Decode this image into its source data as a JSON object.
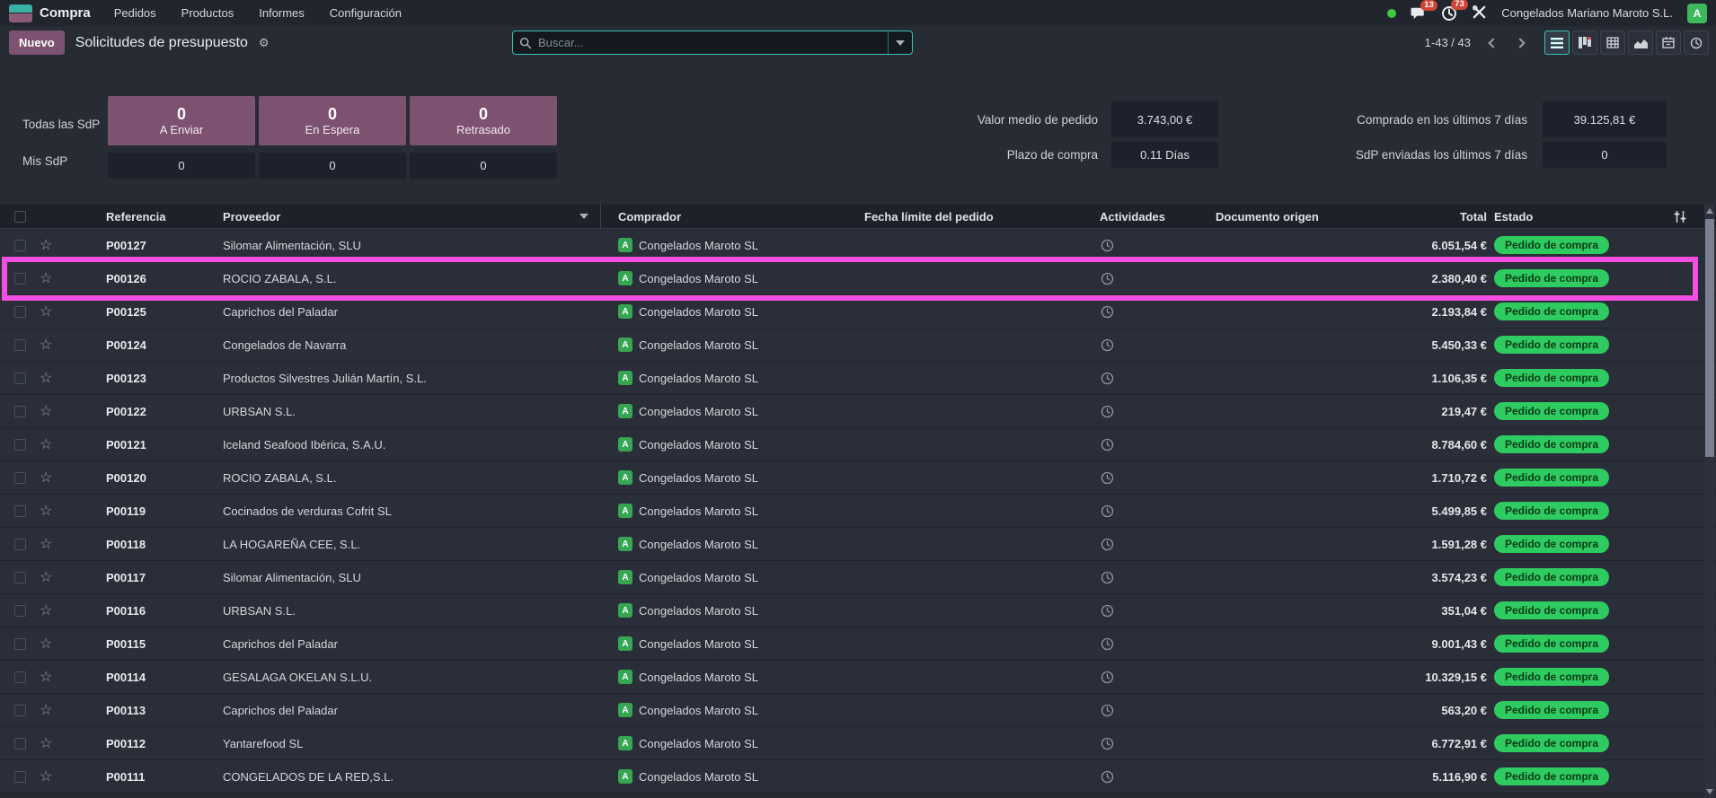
{
  "nav": {
    "app_name": "Compra",
    "menus": [
      "Pedidos",
      "Productos",
      "Informes",
      "Configuración"
    ],
    "messages_count": "13",
    "activities_count": "73",
    "company": "Congelados Mariano Maroto S.L.",
    "user_initial": "A"
  },
  "control_panel": {
    "new_button": "Nuevo",
    "title": "Solicitudes de presupuesto",
    "search_placeholder": "Buscar...",
    "pager": "1-43 / 43",
    "views": [
      "list",
      "kanban",
      "pivot",
      "graph",
      "calendar",
      "activity"
    ],
    "active_view": "list"
  },
  "dashboard": {
    "rows": [
      {
        "label": "Todas las SdP",
        "cards": [
          {
            "value": "0",
            "caption": "A Enviar"
          },
          {
            "value": "0",
            "caption": "En Espera"
          },
          {
            "value": "0",
            "caption": "Retrasado"
          }
        ]
      },
      {
        "label": "Mis SdP",
        "cards": [
          {
            "value": "0"
          },
          {
            "value": "0"
          },
          {
            "value": "0"
          }
        ]
      }
    ],
    "kpis": [
      {
        "label": "Valor medio de pedido",
        "value": "3.743,00 €"
      },
      {
        "label": "Comprado en los últimos 7 días",
        "value": "39.125,81 €"
      },
      {
        "label": "Plazo de compra",
        "value": "0.11 Días"
      },
      {
        "label": "SdP enviadas los últimos 7 días",
        "value": "0"
      }
    ]
  },
  "table": {
    "headers": {
      "reference": "Referencia",
      "vendor": "Proveedor",
      "buyer": "Comprador",
      "deadline": "Fecha límite del pedido",
      "activities": "Actividades",
      "source_doc": "Documento origen",
      "total": "Total",
      "state": "Estado"
    },
    "rows": [
      {
        "reference": "P00127",
        "vendor": "Silomar Alimentación, SLU",
        "buyer": "Congelados Maroto SL",
        "buyer_initial": "A",
        "total": "6.051,54 €",
        "state": "Pedido de compra",
        "highlighted": false
      },
      {
        "reference": "P00126",
        "vendor": "ROCIO ZABALA, S.L.",
        "buyer": "Congelados Maroto SL",
        "buyer_initial": "A",
        "total": "2.380,40 €",
        "state": "Pedido de compra",
        "highlighted": true
      },
      {
        "reference": "P00125",
        "vendor": "Caprichos del Paladar",
        "buyer": "Congelados Maroto SL",
        "buyer_initial": "A",
        "total": "2.193,84 €",
        "state": "Pedido de compra",
        "highlighted": false
      },
      {
        "reference": "P00124",
        "vendor": "Congelados de Navarra",
        "buyer": "Congelados Maroto SL",
        "buyer_initial": "A",
        "total": "5.450,33 €",
        "state": "Pedido de compra",
        "highlighted": false
      },
      {
        "reference": "P00123",
        "vendor": "Productos Silvestres Julián Martín, S.L.",
        "buyer": "Congelados Maroto SL",
        "buyer_initial": "A",
        "total": "1.106,35 €",
        "state": "Pedido de compra",
        "highlighted": false
      },
      {
        "reference": "P00122",
        "vendor": "URBSAN S.L.",
        "buyer": "Congelados Maroto SL",
        "buyer_initial": "A",
        "total": "219,47 €",
        "state": "Pedido de compra",
        "highlighted": false
      },
      {
        "reference": "P00121",
        "vendor": "Iceland Seafood Ibérica, S.A.U.",
        "buyer": "Congelados Maroto SL",
        "buyer_initial": "A",
        "total": "8.784,60 €",
        "state": "Pedido de compra",
        "highlighted": false
      },
      {
        "reference": "P00120",
        "vendor": "ROCIO ZABALA, S.L.",
        "buyer": "Congelados Maroto SL",
        "buyer_initial": "A",
        "total": "1.710,72 €",
        "state": "Pedido de compra",
        "highlighted": false
      },
      {
        "reference": "P00119",
        "vendor": "Cocinados de verduras Cofrit SL",
        "buyer": "Congelados Maroto SL",
        "buyer_initial": "A",
        "total": "5.499,85 €",
        "state": "Pedido de compra",
        "highlighted": false
      },
      {
        "reference": "P00118",
        "vendor": "LA HOGAREÑA CEE, S.L.",
        "buyer": "Congelados Maroto SL",
        "buyer_initial": "A",
        "total": "1.591,28 €",
        "state": "Pedido de compra",
        "highlighted": false
      },
      {
        "reference": "P00117",
        "vendor": "Silomar Alimentación, SLU",
        "buyer": "Congelados Maroto SL",
        "buyer_initial": "A",
        "total": "3.574,23 €",
        "state": "Pedido de compra",
        "highlighted": false
      },
      {
        "reference": "P00116",
        "vendor": "URBSAN S.L.",
        "buyer": "Congelados Maroto SL",
        "buyer_initial": "A",
        "total": "351,04 €",
        "state": "Pedido de compra",
        "highlighted": false
      },
      {
        "reference": "P00115",
        "vendor": "Caprichos del Paladar",
        "buyer": "Congelados Maroto SL",
        "buyer_initial": "A",
        "total": "9.001,43 €",
        "state": "Pedido de compra",
        "highlighted": false
      },
      {
        "reference": "P00114",
        "vendor": "GESALAGA OKELAN S.L.U.",
        "buyer": "Congelados Maroto SL",
        "buyer_initial": "A",
        "total": "10.329,15 €",
        "state": "Pedido de compra",
        "highlighted": false
      },
      {
        "reference": "P00113",
        "vendor": "Caprichos del Paladar",
        "buyer": "Congelados Maroto SL",
        "buyer_initial": "A",
        "total": "563,20 €",
        "state": "Pedido de compra",
        "highlighted": false
      },
      {
        "reference": "P00112",
        "vendor": "Yantarefood SL",
        "buyer": "Congelados Maroto SL",
        "buyer_initial": "A",
        "total": "6.772,91 €",
        "state": "Pedido de compra",
        "highlighted": false
      },
      {
        "reference": "P00111",
        "vendor": "CONGELADOS DE LA RED,S.L.",
        "buyer": "Congelados Maroto SL",
        "buyer_initial": "A",
        "total": "5.116,90 €",
        "state": "Pedido de compra",
        "highlighted": false
      }
    ]
  },
  "annotation": {
    "type": "highlight-box",
    "row_reference": "P00126",
    "color": "#f44fe2"
  },
  "icons": {
    "gear": "⚙",
    "star": "☆"
  },
  "colors": {
    "accent_teal": "#3fc4b4",
    "primary_purple": "#7d5170",
    "badge_green": "#2ecb60",
    "badge_red": "#cf4436",
    "avatar_green": "#37a653",
    "highlight_pink": "#f44fe2"
  }
}
